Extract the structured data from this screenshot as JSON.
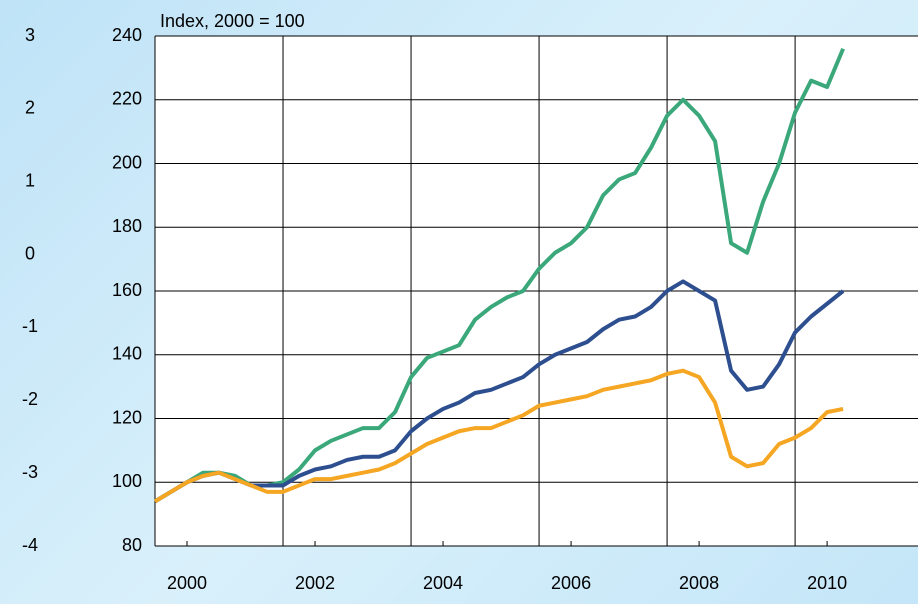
{
  "chart_data": {
    "type": "line",
    "subtitle": "Index, 2000 = 100",
    "x": [
      2000,
      2000.25,
      2000.5,
      2000.75,
      2001,
      2001.25,
      2001.5,
      2001.75,
      2002,
      2002.25,
      2002.5,
      2002.75,
      2003,
      2003.25,
      2003.5,
      2003.75,
      2004,
      2004.25,
      2004.5,
      2004.75,
      2005,
      2005.25,
      2005.5,
      2005.75,
      2006,
      2006.25,
      2006.5,
      2006.75,
      2007,
      2007.25,
      2007.5,
      2007.75,
      2008,
      2008.25,
      2008.5,
      2008.75,
      2009,
      2009.25,
      2009.5,
      2009.75,
      2010,
      2010.25,
      2010.5,
      2010.75
    ],
    "series": [
      {
        "color": "#3aa87a",
        "values": [
          94,
          97,
          100,
          103,
          103,
          102,
          99,
          99,
          100,
          104,
          110,
          113,
          115,
          117,
          117,
          122,
          133,
          139,
          141,
          143,
          151,
          155,
          158,
          160,
          167,
          172,
          175,
          180,
          190,
          195,
          197,
          205,
          215,
          220,
          215,
          207,
          175,
          172,
          188,
          200,
          216,
          226,
          224,
          236
        ]
      },
      {
        "color": "#2e4f8f",
        "values": [
          94,
          97,
          100,
          102,
          103,
          101,
          99,
          99,
          99,
          102,
          104,
          105,
          107,
          108,
          108,
          110,
          116,
          120,
          123,
          125,
          128,
          129,
          131,
          133,
          137,
          140,
          142,
          144,
          148,
          151,
          152,
          155,
          160,
          163,
          160,
          157,
          135,
          129,
          130,
          137,
          147,
          152,
          156,
          160
        ]
      },
      {
        "color": "#f5a623",
        "values": [
          94,
          97,
          100,
          102,
          103,
          101,
          99,
          97,
          97,
          99,
          101,
          101,
          102,
          103,
          104,
          106,
          109,
          112,
          114,
          116,
          117,
          117,
          119,
          121,
          124,
          125,
          126,
          127,
          129,
          130,
          131,
          132,
          134,
          135,
          133,
          125,
          108,
          105,
          106,
          112,
          114,
          117,
          122,
          123
        ]
      }
    ],
    "xlim": [
      2000,
      2011.92
    ],
    "xgrid": [
      2000,
      2002,
      2004,
      2006,
      2008,
      2010,
      2012
    ],
    "xticks": [
      {
        "value": 2000.5,
        "label": "2000"
      },
      {
        "value": 2002.5,
        "label": "2002"
      },
      {
        "value": 2004.5,
        "label": "2004"
      },
      {
        "value": 2006.5,
        "label": "2006"
      },
      {
        "value": 2008.5,
        "label": "2008"
      },
      {
        "value": 2010.5,
        "label": "2010"
      }
    ],
    "ylim": [
      80,
      240
    ],
    "yticks": [
      80,
      100,
      120,
      140,
      160,
      180,
      200,
      220,
      240
    ],
    "y2lim": [
      -4,
      3
    ],
    "y2ticks": [
      -4,
      -3,
      -2,
      -1,
      0,
      1,
      2,
      3
    ],
    "grid": true
  }
}
